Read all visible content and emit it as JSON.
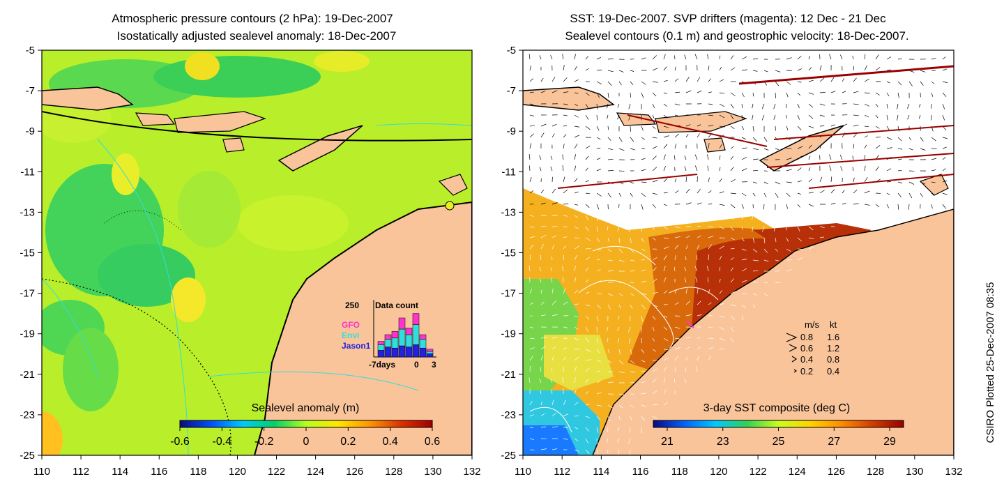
{
  "chart_data": [
    {
      "type": "heatmap",
      "title_line1": "Atmospheric pressure contours (2 hPa): 19-Dec-2007",
      "title_line2": "Isostatically adjusted sealevel anomaly: 18-Dec-2007",
      "xlim": [
        110,
        132
      ],
      "ylim": [
        -25,
        -5
      ],
      "xticks": [
        110,
        112,
        114,
        116,
        118,
        120,
        122,
        124,
        126,
        128,
        130,
        132
      ],
      "yticks": [
        -5,
        -7,
        -9,
        -11,
        -13,
        -15,
        -17,
        -19,
        -21,
        -23,
        -25
      ],
      "colorbar": {
        "label": "Sealevel anomaly (m)",
        "range": [
          -0.6,
          0.6
        ],
        "ticks": [
          "-0.6",
          "-0.4",
          "-0.2",
          "0",
          "0.2",
          "0.4",
          "0.6"
        ]
      },
      "inset": {
        "title": "Data count",
        "ymax_label": "250",
        "x_labels": [
          "-7days",
          "0",
          "3"
        ],
        "legend": [
          {
            "name": "GFO",
            "color": "#ff33cc"
          },
          {
            "name": "Envi",
            "color": "#33dddd"
          },
          {
            "name": "Jason1",
            "color": "#2222dd"
          }
        ],
        "bars": [
          {
            "Jason1": 30,
            "Envi": 25,
            "GFO": 15
          },
          {
            "Jason1": 45,
            "Envi": 35,
            "GFO": 20
          },
          {
            "Jason1": 40,
            "Envi": 45,
            "GFO": 30
          },
          {
            "Jason1": 50,
            "Envi": 75,
            "GFO": 50
          },
          {
            "Jason1": 45,
            "Envi": 55,
            "GFO": 30
          },
          {
            "Jason1": 55,
            "Envi": 90,
            "GFO": 50
          },
          {
            "Jason1": 40,
            "Envi": 40,
            "GFO": 20
          },
          {
            "Jason1": 15,
            "Envi": 10,
            "GFO": 10
          }
        ]
      }
    },
    {
      "type": "heatmap",
      "title_line1": "SST: 19-Dec-2007. SVP drifters (magenta): 12 Dec - 21 Dec",
      "title_line2": "Sealevel contours (0.1 m) and geostrophic velocity: 18-Dec-2007.",
      "xlim": [
        110,
        132
      ],
      "ylim": [
        -25,
        -5
      ],
      "xticks": [
        110,
        112,
        114,
        116,
        118,
        120,
        122,
        124,
        126,
        128,
        130,
        132
      ],
      "yticks": [
        -5,
        -7,
        -9,
        -11,
        -13,
        -15,
        -17,
        -19,
        -21,
        -23,
        -25
      ],
      "colorbar": {
        "label": "3-day SST composite (deg C)",
        "range": [
          20.5,
          29.5
        ],
        "ticks": [
          "21",
          "23",
          "25",
          "27",
          "29"
        ]
      },
      "velocity_legend": {
        "header_ms": "m/s",
        "header_kt": "kt",
        "rows": [
          {
            "ms": "0.8",
            "kt": "1.6"
          },
          {
            "ms": "0.6",
            "kt": "1.2"
          },
          {
            "ms": "0.4",
            "kt": "0.8"
          },
          {
            "ms": "0.2",
            "kt": "0.4"
          }
        ]
      }
    }
  ],
  "footer": {
    "credit": "CSIRO Plotted 25-Dec-2007 08:35"
  },
  "colors": {
    "land": "#f9c49a",
    "frame": "#000000",
    "sla_scale": [
      "#0a0a80",
      "#0050ff",
      "#00c8ff",
      "#00d264",
      "#b4ff1e",
      "#ffe600",
      "#ff9600",
      "#dc3200",
      "#a00000"
    ],
    "sst_scale": [
      "#0a0a80",
      "#0064ff",
      "#00c8ff",
      "#32d250",
      "#c8ff1e",
      "#ffd200",
      "#ff8c00",
      "#d23c00",
      "#960000"
    ]
  }
}
